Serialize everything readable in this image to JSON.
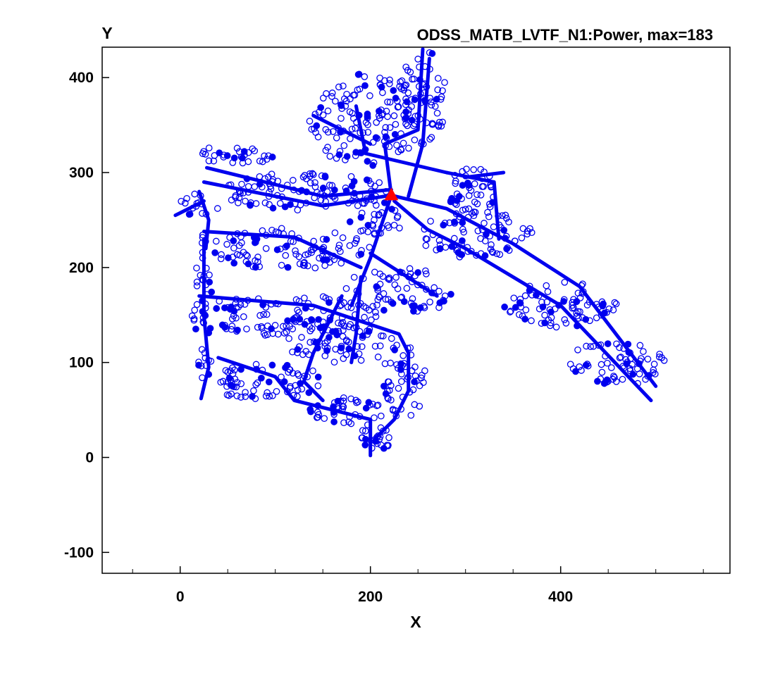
{
  "chart_data": {
    "type": "scatter",
    "title": "ODSS_MATB_LVTF_N1:Power, max=183",
    "xlabel": "X",
    "ylabel": "Y",
    "xlim": [
      -82,
      578
    ],
    "ylim": [
      -122,
      432
    ],
    "x_ticks": [
      0,
      200,
      400
    ],
    "x_tick_labels": [
      "0",
      "200",
      "400"
    ],
    "y_ticks": [
      -100,
      0,
      100,
      200,
      300,
      400
    ],
    "y_tick_labels": [
      "-100",
      "0",
      "100",
      "200",
      "300",
      "400"
    ],
    "x_minor_step": 50,
    "grid": false,
    "legend": "none",
    "colors": {
      "network": "#0000ee",
      "source": "#ff0000",
      "axes": "#000000"
    },
    "source_node": {
      "x": 222,
      "y": 276
    },
    "feeder_lines": [
      [
        [
          25,
          290
        ],
        [
          150,
          265
        ],
        [
          222,
          276
        ],
        [
          280,
          262
        ],
        [
          350,
          225
        ],
        [
          420,
          180
        ],
        [
          500,
          75
        ]
      ],
      [
        [
          28,
          305
        ],
        [
          150,
          275
        ],
        [
          222,
          282
        ]
      ],
      [
        [
          222,
          276
        ],
        [
          200,
          210
        ],
        [
          180,
          160
        ]
      ],
      [
        [
          222,
          276
        ],
        [
          215,
          330
        ],
        [
          250,
          345
        ],
        [
          255,
          430
        ]
      ],
      [
        [
          240,
          275
        ],
        [
          255,
          330
        ],
        [
          262,
          420
        ]
      ],
      [
        [
          225,
          270
        ],
        [
          260,
          240
        ],
        [
          300,
          220
        ],
        [
          400,
          160
        ],
        [
          495,
          60
        ]
      ],
      [
        [
          200,
          215
        ],
        [
          270,
          170
        ]
      ],
      [
        [
          25,
          238
        ],
        [
          120,
          232
        ],
        [
          190,
          200
        ]
      ],
      [
        [
          25,
          230
        ],
        [
          25,
          150
        ],
        [
          30,
          95
        ],
        [
          22,
          62
        ]
      ],
      [
        [
          20,
          280
        ],
        [
          30,
          250
        ],
        [
          27,
          220
        ]
      ],
      [
        [
          20,
          170
        ],
        [
          140,
          160
        ],
        [
          230,
          130
        ],
        [
          240,
          110
        ]
      ],
      [
        [
          190,
          190
        ],
        [
          185,
          130
        ],
        [
          180,
          100
        ]
      ],
      [
        [
          40,
          105
        ],
        [
          100,
          85
        ],
        [
          120,
          60
        ],
        [
          160,
          50
        ],
        [
          200,
          40
        ],
        [
          200,
          2
        ]
      ],
      [
        [
          240,
          110
        ],
        [
          240,
          70
        ],
        [
          225,
          40
        ],
        [
          205,
          20
        ]
      ],
      [
        [
          185,
          370
        ],
        [
          195,
          320
        ],
        [
          280,
          300
        ],
        [
          330,
          290
        ],
        [
          335,
          230
        ]
      ],
      [
        [
          140,
          360
        ],
        [
          200,
          330
        ]
      ],
      [
        [
          -5,
          255
        ],
        [
          25,
          270
        ]
      ],
      [
        [
          130,
          80
        ],
        [
          150,
          60
        ]
      ],
      [
        [
          300,
          295
        ],
        [
          340,
          300
        ]
      ],
      [
        [
          170,
          170
        ],
        [
          140,
          110
        ],
        [
          130,
          80
        ]
      ]
    ],
    "bus_clusters": [
      {
        "cx": 130,
        "cy": 280,
        "rx": 90,
        "ry": 20,
        "n": 110
      },
      {
        "cx": 60,
        "cy": 320,
        "rx": 40,
        "ry": 12,
        "n": 30
      },
      {
        "cx": 310,
        "cy": 235,
        "rx": 60,
        "ry": 25,
        "n": 80
      },
      {
        "cx": 400,
        "cy": 160,
        "rx": 60,
        "ry": 25,
        "n": 80
      },
      {
        "cx": 460,
        "cy": 100,
        "rx": 50,
        "ry": 25,
        "n": 70
      },
      {
        "cx": 110,
        "cy": 220,
        "rx": 90,
        "ry": 22,
        "n": 100
      },
      {
        "cx": 230,
        "cy": 175,
        "rx": 60,
        "ry": 25,
        "n": 70
      },
      {
        "cx": 110,
        "cy": 150,
        "rx": 100,
        "ry": 22,
        "n": 120
      },
      {
        "cx": 170,
        "cy": 120,
        "rx": 60,
        "ry": 20,
        "n": 60
      },
      {
        "cx": 235,
        "cy": 80,
        "rx": 25,
        "ry": 40,
        "n": 50
      },
      {
        "cx": 90,
        "cy": 80,
        "rx": 60,
        "ry": 20,
        "n": 70
      },
      {
        "cx": 175,
        "cy": 50,
        "rx": 40,
        "ry": 15,
        "n": 40
      },
      {
        "cx": 205,
        "cy": 20,
        "rx": 15,
        "ry": 20,
        "n": 25
      },
      {
        "cx": 25,
        "cy": 150,
        "rx": 10,
        "ry": 90,
        "n": 40
      },
      {
        "cx": 20,
        "cy": 265,
        "rx": 20,
        "ry": 15,
        "n": 15
      },
      {
        "cx": 195,
        "cy": 355,
        "rx": 60,
        "ry": 50,
        "n": 130
      },
      {
        "cx": 255,
        "cy": 380,
        "rx": 25,
        "ry": 50,
        "n": 70
      },
      {
        "cx": 310,
        "cy": 280,
        "rx": 30,
        "ry": 25,
        "n": 45
      },
      {
        "cx": 205,
        "cy": 250,
        "rx": 30,
        "ry": 20,
        "n": 30
      }
    ]
  }
}
